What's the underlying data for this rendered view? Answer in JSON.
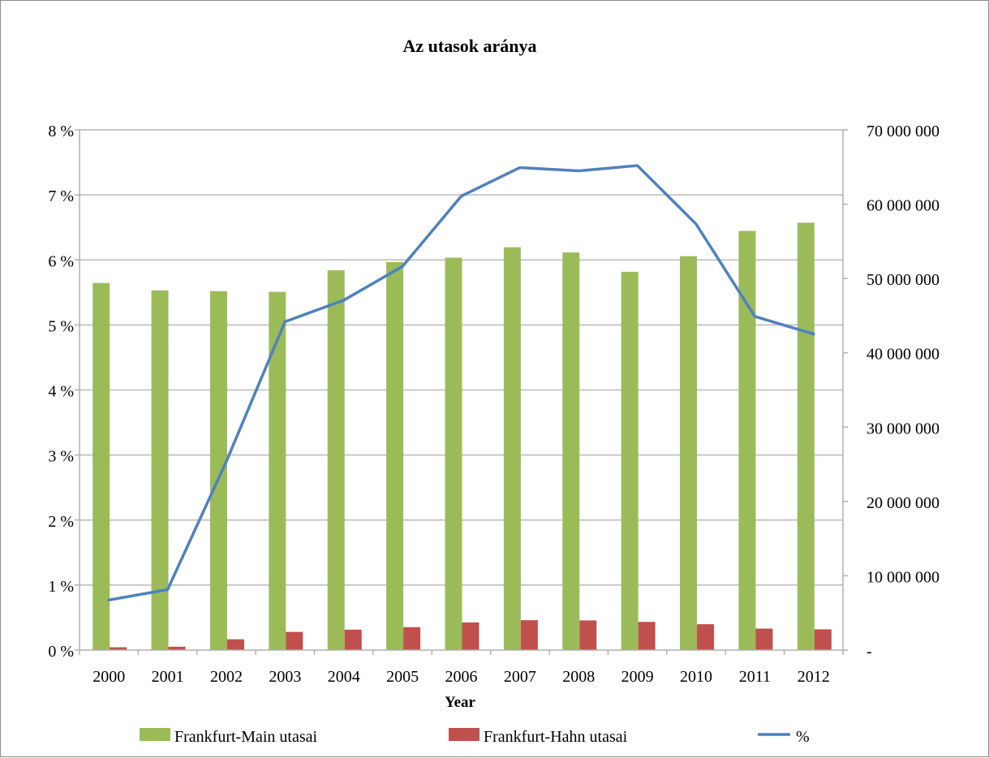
{
  "chart_data": {
    "type": "bar+line",
    "title": "Az utasok aránya",
    "xlabel": "Year",
    "categories": [
      "2000",
      "2001",
      "2002",
      "2003",
      "2004",
      "2005",
      "2006",
      "2007",
      "2008",
      "2009",
      "2010",
      "2011",
      "2012"
    ],
    "series": [
      {
        "name": "Frankfurt-Main utasai",
        "kind": "bar",
        "axis": "right",
        "color": "#9bbb59",
        "values": [
          49400000,
          48400000,
          48300000,
          48200000,
          51100000,
          52200000,
          52800000,
          54200000,
          53500000,
          50900000,
          53000000,
          56400000,
          57500000
        ]
      },
      {
        "name": "Frankfurt-Hahn utasai",
        "kind": "bar",
        "axis": "right",
        "color": "#c0504d",
        "values": [
          380000,
          450000,
          1450000,
          2440000,
          2750000,
          3080000,
          3710000,
          4020000,
          3990000,
          3790000,
          3480000,
          2890000,
          2790000
        ]
      },
      {
        "name": "%",
        "kind": "line",
        "axis": "left",
        "color": "#4f81bd",
        "values": [
          0.77,
          0.93,
          2.9,
          5.05,
          5.38,
          5.9,
          6.98,
          7.42,
          7.37,
          7.45,
          6.55,
          5.13,
          4.86
        ]
      }
    ],
    "y_left": {
      "range": [
        0,
        8
      ],
      "ticks": [
        0,
        1,
        2,
        3,
        4,
        5,
        6,
        7,
        8
      ],
      "tick_labels": [
        "0 %",
        "1 %",
        "2 %",
        "3 %",
        "4 %",
        "5 %",
        "6 %",
        "7 %",
        "8 %"
      ]
    },
    "y_right": {
      "range": [
        0,
        70000000
      ],
      "ticks": [
        0,
        10000000,
        20000000,
        30000000,
        40000000,
        50000000,
        60000000,
        70000000
      ],
      "tick_labels": [
        "-",
        "10 000 000",
        "20 000 000",
        "30 000 000",
        "40 000 000",
        "50 000 000",
        "60 000 000",
        "70 000 000"
      ]
    },
    "grid": true,
    "legend_position": "bottom"
  }
}
